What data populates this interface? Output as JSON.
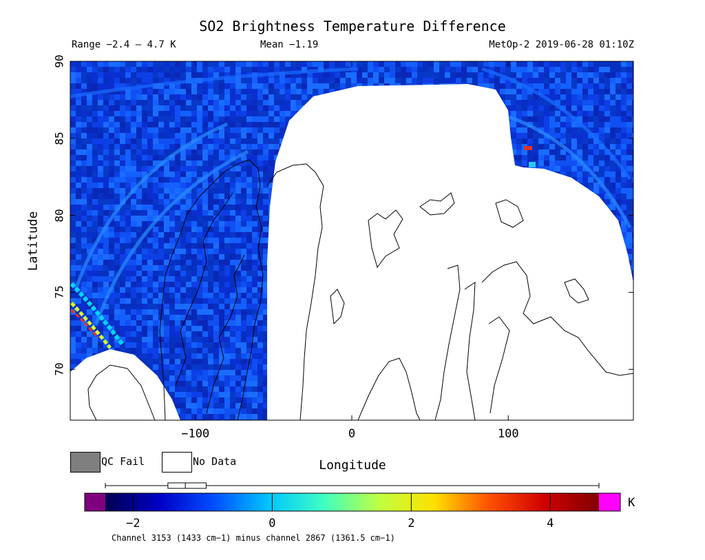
{
  "header": {
    "title": "SO2 Brightness Temperature Difference",
    "range_text": "Range −2.4 – 4.7 K",
    "mean_text": "Mean −1.19",
    "satellite_text": "MetOp-2 2019-06-28 01:10Z"
  },
  "axes": {
    "xlabel": "Longitude",
    "ylabel": "Latitude",
    "x_ticks": [
      "−100",
      "0",
      "100"
    ],
    "x_tick_values": [
      -100,
      0,
      100
    ],
    "y_ticks": [
      "90",
      "85",
      "80",
      "75",
      "70"
    ],
    "y_tick_values": [
      90,
      85,
      80,
      75,
      70
    ],
    "xlim": [
      -180,
      180
    ],
    "ylim": [
      66.7,
      90
    ]
  },
  "legend": {
    "qc_fail_label": "QC Fail",
    "qc_fail_color": "#7f7f7f",
    "no_data_label": "No Data",
    "no_data_color": "#ffffff"
  },
  "colorbar": {
    "ticks": [
      "−2",
      "0",
      "2",
      "4"
    ],
    "tick_values": [
      -2,
      0,
      2,
      4
    ],
    "range": [
      -2.4,
      4.7
    ],
    "unit": "K",
    "under_color": "#7f007f",
    "over_color": "#ff00ff",
    "stops": [
      "#00004f",
      "#0000c8",
      "#0050ff",
      "#00c8ff",
      "#40ffc0",
      "#c0ff40",
      "#ffe000",
      "#ff5000",
      "#d00000",
      "#800000"
    ],
    "boxplot": {
      "whisker_low": -2.4,
      "q1": -1.5,
      "median": -1.25,
      "q3": -0.95,
      "whisker_high": 4.7
    }
  },
  "caption": "Channel 3153 (1433 cm−1) minus channel 2867 (1361.5 cm−1)"
}
